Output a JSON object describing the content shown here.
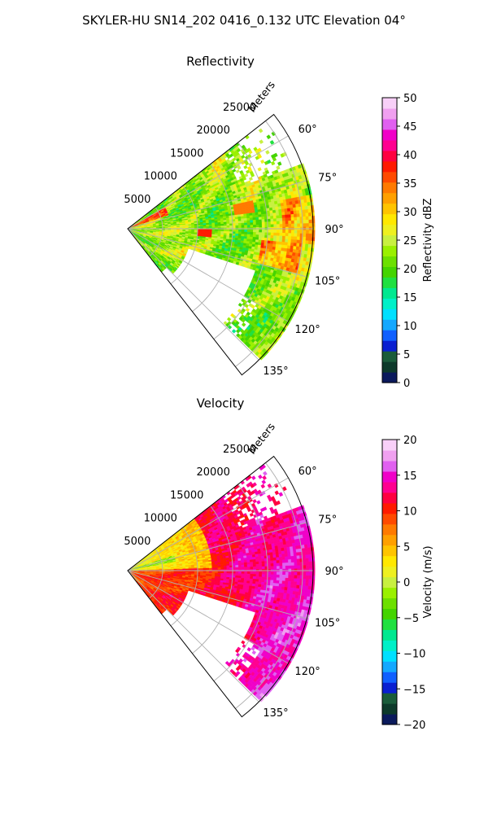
{
  "figure": {
    "title": "SKYLER-HU  SN14_202  0416_0.132 UTC Elevation 04°"
  },
  "chart_data": [
    {
      "type": "heatmap",
      "subtype": "polar-sector-radar",
      "title": "Reflectivity",
      "range_label": "Meters",
      "range_ticks": [
        5000,
        10000,
        15000,
        20000,
        25000
      ],
      "range_tick_labels": [
        "5000",
        "10000",
        "15000",
        "20000",
        "25000"
      ],
      "azimuth_ticks": [
        60,
        75,
        90,
        105,
        120,
        135
      ],
      "azimuth_tick_labels": [
        "60°",
        "75°",
        "90°",
        "105°",
        "120°",
        "135°"
      ],
      "azimuth_range": [
        52,
        142
      ],
      "colorbar": {
        "label": "Reflectivity dBZ",
        "min": 0,
        "max": 50,
        "ticks": [
          0,
          5,
          10,
          15,
          20,
          25,
          30,
          35,
          40,
          45,
          50
        ],
        "tick_labels": [
          "0",
          "5",
          "10",
          "15",
          "20",
          "25",
          "30",
          "35",
          "40",
          "45",
          "50"
        ],
        "colors": [
          "#0b1a5c",
          "#0d3a2a",
          "#1a5c3a",
          "#0a1fd1",
          "#1060ff",
          "#14a8ff",
          "#00e0ff",
          "#00f0c8",
          "#00e890",
          "#20e040",
          "#44d400",
          "#6ce000",
          "#9af000",
          "#c8f040",
          "#eef020",
          "#ffe800",
          "#ffc400",
          "#ffa000",
          "#ff7a00",
          "#ff4a00",
          "#ff1a00",
          "#ff0040",
          "#ff0090",
          "#f000c8",
          "#e060f0",
          "#f0a0f0",
          "#f8d0f8"
        ]
      },
      "field_summary": "Mostly 20–30 dBZ (green/yellow) with embedded 35–40 dBZ cells; data void near 110–135° at mid range"
    },
    {
      "type": "heatmap",
      "subtype": "polar-sector-radar",
      "title": "Velocity",
      "range_label": "Meters",
      "range_ticks": [
        5000,
        10000,
        15000,
        20000,
        25000
      ],
      "range_tick_labels": [
        "5000",
        "10000",
        "15000",
        "20000",
        "25000"
      ],
      "azimuth_ticks": [
        60,
        75,
        90,
        105,
        120,
        135
      ],
      "azimuth_tick_labels": [
        "60°",
        "75°",
        "90°",
        "105°",
        "120°",
        "135°"
      ],
      "azimuth_range": [
        52,
        142
      ],
      "colorbar": {
        "label": "Velocity (m/s)",
        "min": -20,
        "max": 20,
        "ticks": [
          -20,
          -15,
          -10,
          -5,
          0,
          5,
          10,
          15,
          20
        ],
        "tick_labels": [
          "−20",
          "−15",
          "−10",
          "−5",
          "0",
          "5",
          "10",
          "15",
          "20"
        ],
        "colors": [
          "#0b1a5c",
          "#0d3a2a",
          "#1a5c3a",
          "#0a1fd1",
          "#1060ff",
          "#14a8ff",
          "#00e0ff",
          "#00f0c8",
          "#00e890",
          "#20e040",
          "#44d400",
          "#6ce000",
          "#9af000",
          "#c8f040",
          "#eef020",
          "#ffe800",
          "#ffc400",
          "#ffa000",
          "#ff7a00",
          "#ff4a00",
          "#ff1a00",
          "#ff0040",
          "#ff0090",
          "#f000c8",
          "#e060f0",
          "#f0a0f0",
          "#f8d0f8"
        ]
      },
      "field_summary": "Mostly +5 to +15 m/s (orange/red/magenta) increasing with range; near-zero (yellow/green) close to radar at 60–85°"
    }
  ]
}
